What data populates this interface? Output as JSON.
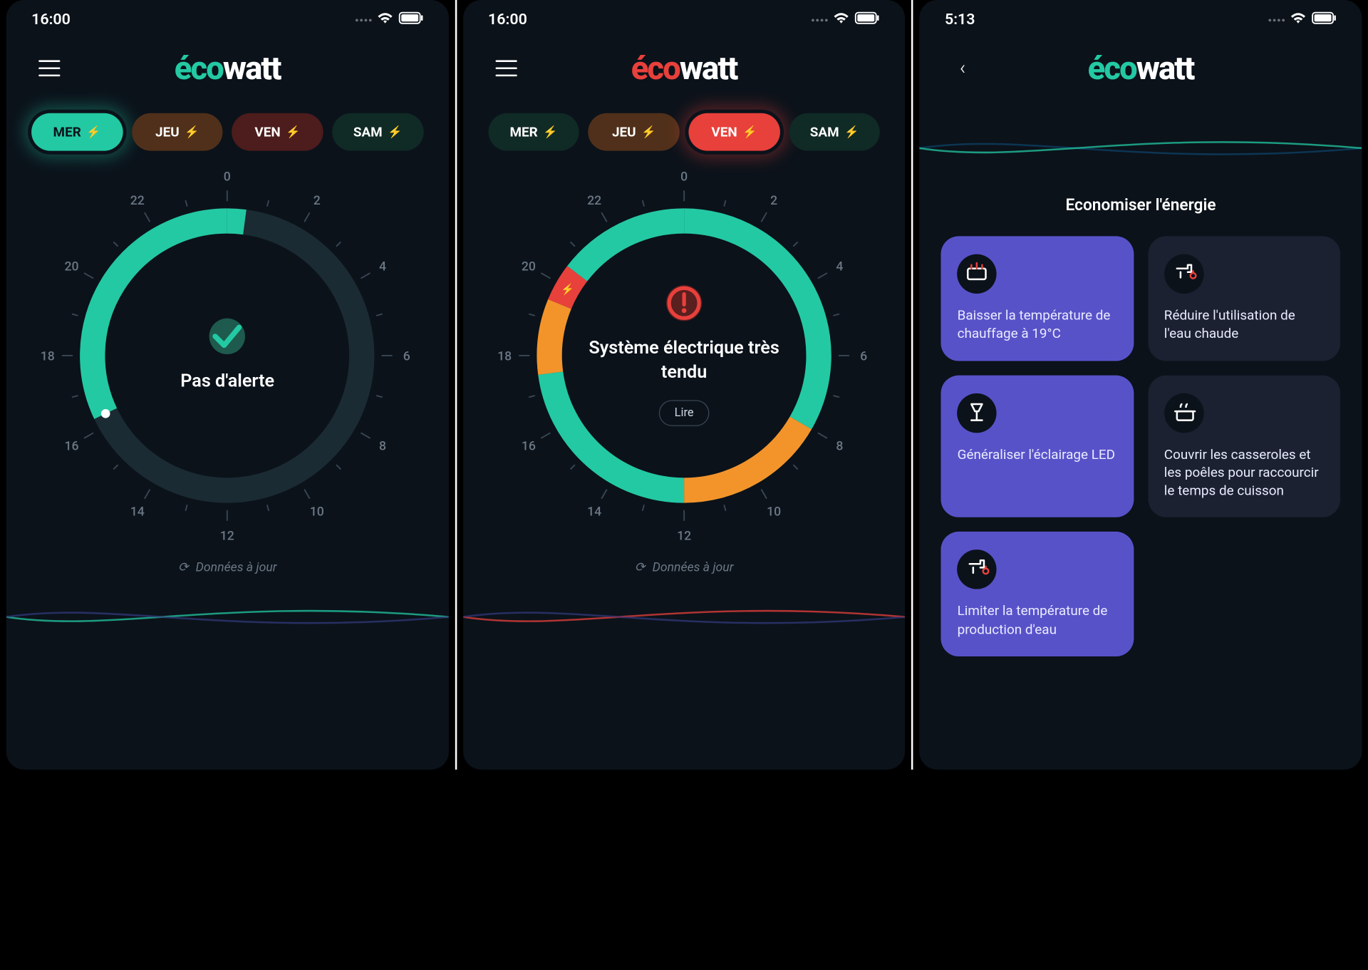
{
  "colors": {
    "bg": "#0b121a",
    "green": "#23c9a3",
    "orange": "#f3942a",
    "red": "#e8403b",
    "ring_empty": "#1b2b33",
    "tick": "#3a4653",
    "text_muted": "#6b7785",
    "tip_purple": "#5852c9",
    "tip_dark": "#1b2130"
  },
  "screens": [
    {
      "statusbar_time": "16:00",
      "nav": "hamburger",
      "logo_eco_color": "#23c9a3",
      "day_tabs": [
        {
          "label": "MER",
          "bg": "#23c9a3",
          "text": "#0b121a",
          "bolt_color": "#ffffff",
          "glow": true
        },
        {
          "label": "JEU",
          "bg": "#50301a",
          "text": "#ffffff",
          "bolt_color": "#f3942a",
          "glow": false
        },
        {
          "label": "VEN",
          "bg": "#4d1c1c",
          "text": "#ffffff",
          "bolt_color": "#e8403b",
          "glow": false
        },
        {
          "label": "SAM",
          "bg": "#102a25",
          "text": "#ffffff",
          "bolt_color": "#23c9a3",
          "glow": false
        }
      ],
      "dial": {
        "hours_labeled": [
          0,
          2,
          4,
          6,
          8,
          10,
          12,
          14,
          16,
          18,
          20,
          22
        ],
        "ring_radius": 150,
        "ring_stroke": 28,
        "segments": [
          {
            "from_h": 16.3,
            "to_h": 24.0,
            "color": "#23c9a3"
          },
          {
            "from_h": 0.0,
            "to_h": 0.5,
            "color": "#23c9a3"
          }
        ],
        "marker_hour": 16.3,
        "icon": {
          "type": "check",
          "bg": "#1e5a4d",
          "fg": "#23c9a3"
        },
        "status_text": "Pas d'alerte",
        "lire_button": false
      },
      "update_text": "Données à jour",
      "wave_colors": [
        "#0d3a5a",
        "#23c9a3",
        "#3b2a6b"
      ]
    },
    {
      "statusbar_time": "16:00",
      "nav": "hamburger",
      "logo_eco_color": "#e8403b",
      "day_tabs": [
        {
          "label": "MER",
          "bg": "#102a25",
          "text": "#ffffff",
          "bolt_color": "#23c9a3",
          "glow": false
        },
        {
          "label": "JEU",
          "bg": "#50301a",
          "text": "#ffffff",
          "bolt_color": "#f3942a",
          "glow": false
        },
        {
          "label": "VEN",
          "bg": "#e8403b",
          "text": "#ffffff",
          "bolt_color": "#ffffff",
          "glow": true
        },
        {
          "label": "SAM",
          "bg": "#102a25",
          "text": "#ffffff",
          "bolt_color": "#23c9a3",
          "glow": false
        }
      ],
      "dial": {
        "hours_labeled": [
          0,
          2,
          4,
          6,
          8,
          10,
          12,
          14,
          16,
          18,
          20,
          22
        ],
        "ring_radius": 150,
        "ring_stroke": 28,
        "segments": [
          {
            "from_h": 0,
            "to_h": 8,
            "color": "#23c9a3"
          },
          {
            "from_h": 8,
            "to_h": 12,
            "color": "#f3942a"
          },
          {
            "from_h": 12,
            "to_h": 17.5,
            "color": "#23c9a3"
          },
          {
            "from_h": 17.5,
            "to_h": 19.5,
            "color": "#f3942a"
          },
          {
            "from_h": 19.5,
            "to_h": 20.5,
            "color": "#e8403b"
          },
          {
            "from_h": 20.5,
            "to_h": 24,
            "color": "#23c9a3"
          }
        ],
        "icon": {
          "type": "alert",
          "bg": "#5a1f1f",
          "fg": "#e8403b"
        },
        "bolt_badge_hour": 20,
        "status_text": "Système électrique très tendu",
        "lire_button": true,
        "lire_label": "Lire"
      },
      "update_text": "Données à jour",
      "wave_colors": [
        "#0d3a5a",
        "#e8403b",
        "#3b2a6b"
      ]
    },
    {
      "statusbar_time": "5:13",
      "nav": "back",
      "logo_eco_color": "#23c9a3",
      "wave_top_colors": [
        "#0d3a5a",
        "#23c9a3"
      ],
      "section_title": "Economiser l'énergie",
      "tips": [
        {
          "label": "Baisser la température de chauffage à 19°C",
          "bg": "#5852c9",
          "icon": "heater"
        },
        {
          "label": "Réduire l'utilisation de l'eau chaude",
          "bg": "#1b2130",
          "icon": "tap"
        },
        {
          "label": "Généraliser l'éclairage LED",
          "bg": "#5852c9",
          "icon": "lamp"
        },
        {
          "label": "Couvrir les casseroles et les poêles pour raccourcir le temps de cuisson",
          "bg": "#1b2130",
          "icon": "pot"
        },
        {
          "label": "Limiter la température de production d'eau",
          "bg": "#5852c9",
          "icon": "tap"
        }
      ]
    }
  ]
}
